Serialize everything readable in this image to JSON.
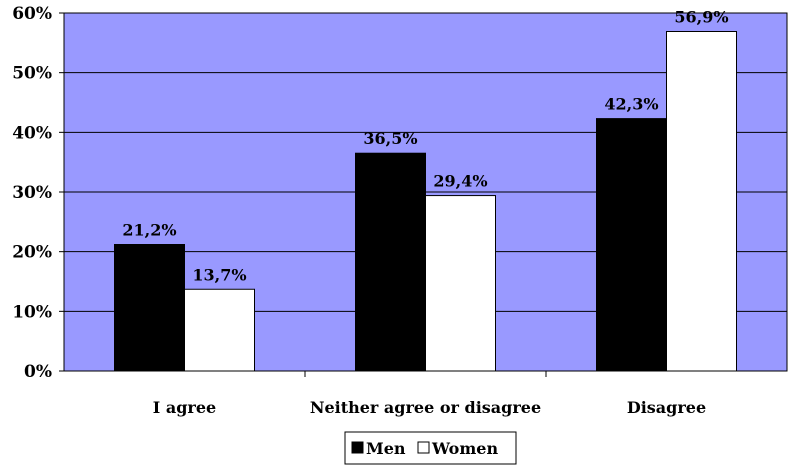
{
  "chart_data": {
    "type": "bar",
    "title": "",
    "xlabel": "",
    "ylabel": "",
    "categories": [
      "I agree",
      "Neither agree or disagree",
      "Disagree"
    ],
    "series": [
      {
        "name": "Men",
        "values": [
          21.2,
          36.5,
          42.3
        ],
        "labels": [
          "21,2%",
          "36,5%",
          "42,3%"
        ],
        "color": "#000000"
      },
      {
        "name": "Women",
        "values": [
          13.7,
          29.4,
          56.9
        ],
        "labels": [
          "13,7%",
          "29,4%",
          "56,9%"
        ],
        "color": "#ffffff"
      }
    ],
    "ylim": [
      0,
      60
    ],
    "yticks": [
      "0%",
      "10%",
      "20%",
      "30%",
      "40%",
      "50%",
      "60%"
    ],
    "plot_background": "#9999ff",
    "grid": true,
    "legend_position": "bottom-center"
  }
}
